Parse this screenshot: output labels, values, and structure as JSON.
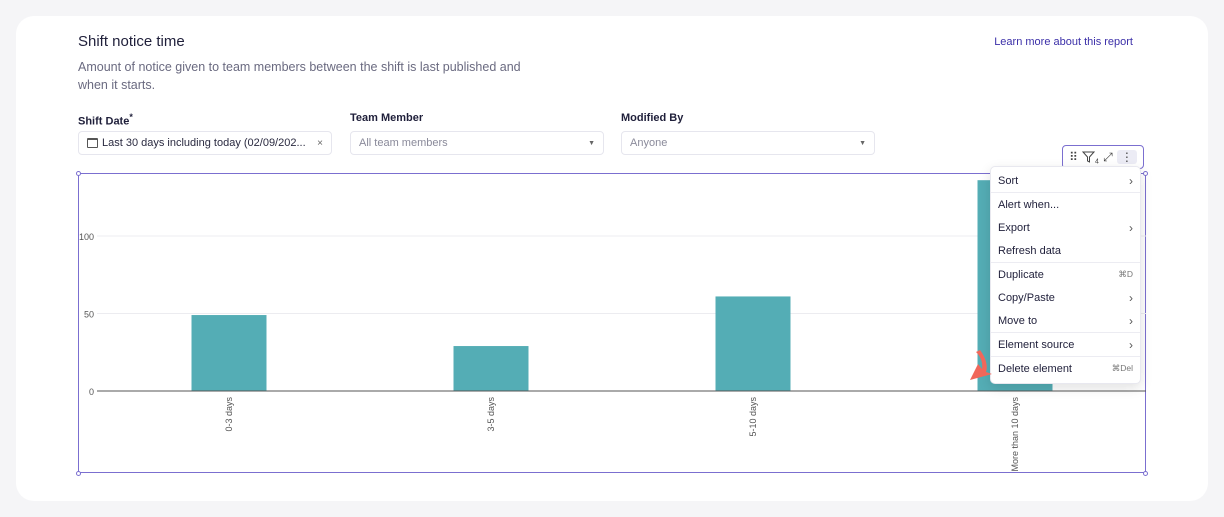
{
  "report": {
    "title": "Shift notice time",
    "description": "Amount of notice given to team members between the shift is last published and when it starts.",
    "learn_more": "Learn more about this report"
  },
  "filters": {
    "shift_date": {
      "label": "Shift Date",
      "required_mark": "*",
      "value": "Last 30 days including today (02/09/202...",
      "clear": "×"
    },
    "team_member": {
      "label": "Team Member",
      "value": "All team members",
      "caret": "▼"
    },
    "modified_by": {
      "label": "Modified By",
      "value": "Anyone",
      "caret": "▼"
    }
  },
  "toolbar": {
    "drag": "⠿",
    "filter_icon": "filter-icon",
    "filter_count": "4",
    "expand": "⤢",
    "more": "⋮"
  },
  "menu": {
    "items": [
      {
        "label": "Sort",
        "chevron": "›",
        "shortcut": ""
      },
      {
        "label": "Alert when...",
        "chevron": "",
        "shortcut": ""
      },
      {
        "label": "Export",
        "chevron": "›",
        "shortcut": ""
      },
      {
        "label": "Refresh data",
        "chevron": "",
        "shortcut": ""
      },
      {
        "label": "Duplicate",
        "chevron": "",
        "shortcut": "⌘D"
      },
      {
        "label": "Copy/Paste",
        "chevron": "›",
        "shortcut": ""
      },
      {
        "label": "Move to",
        "chevron": "›",
        "shortcut": ""
      },
      {
        "label": "Element source",
        "chevron": "›",
        "shortcut": ""
      },
      {
        "label": "Delete element",
        "chevron": "",
        "shortcut": "⌘Del"
      }
    ]
  },
  "colors": {
    "bar": "#54adb5",
    "accent": "#3b2fa8",
    "selection": "#7b6fd0",
    "annotation": "#f0675a"
  },
  "chart_data": {
    "type": "bar",
    "categories": [
      "0-3 days",
      "3-5 days",
      "5-10 days",
      "More than 10 days"
    ],
    "values": [
      49,
      29,
      61,
      136
    ],
    "yticks": [
      0,
      50,
      100
    ],
    "ylim": [
      0,
      140
    ],
    "title": "",
    "xlabel": "",
    "ylabel": "",
    "grid": true,
    "legend": "none"
  }
}
